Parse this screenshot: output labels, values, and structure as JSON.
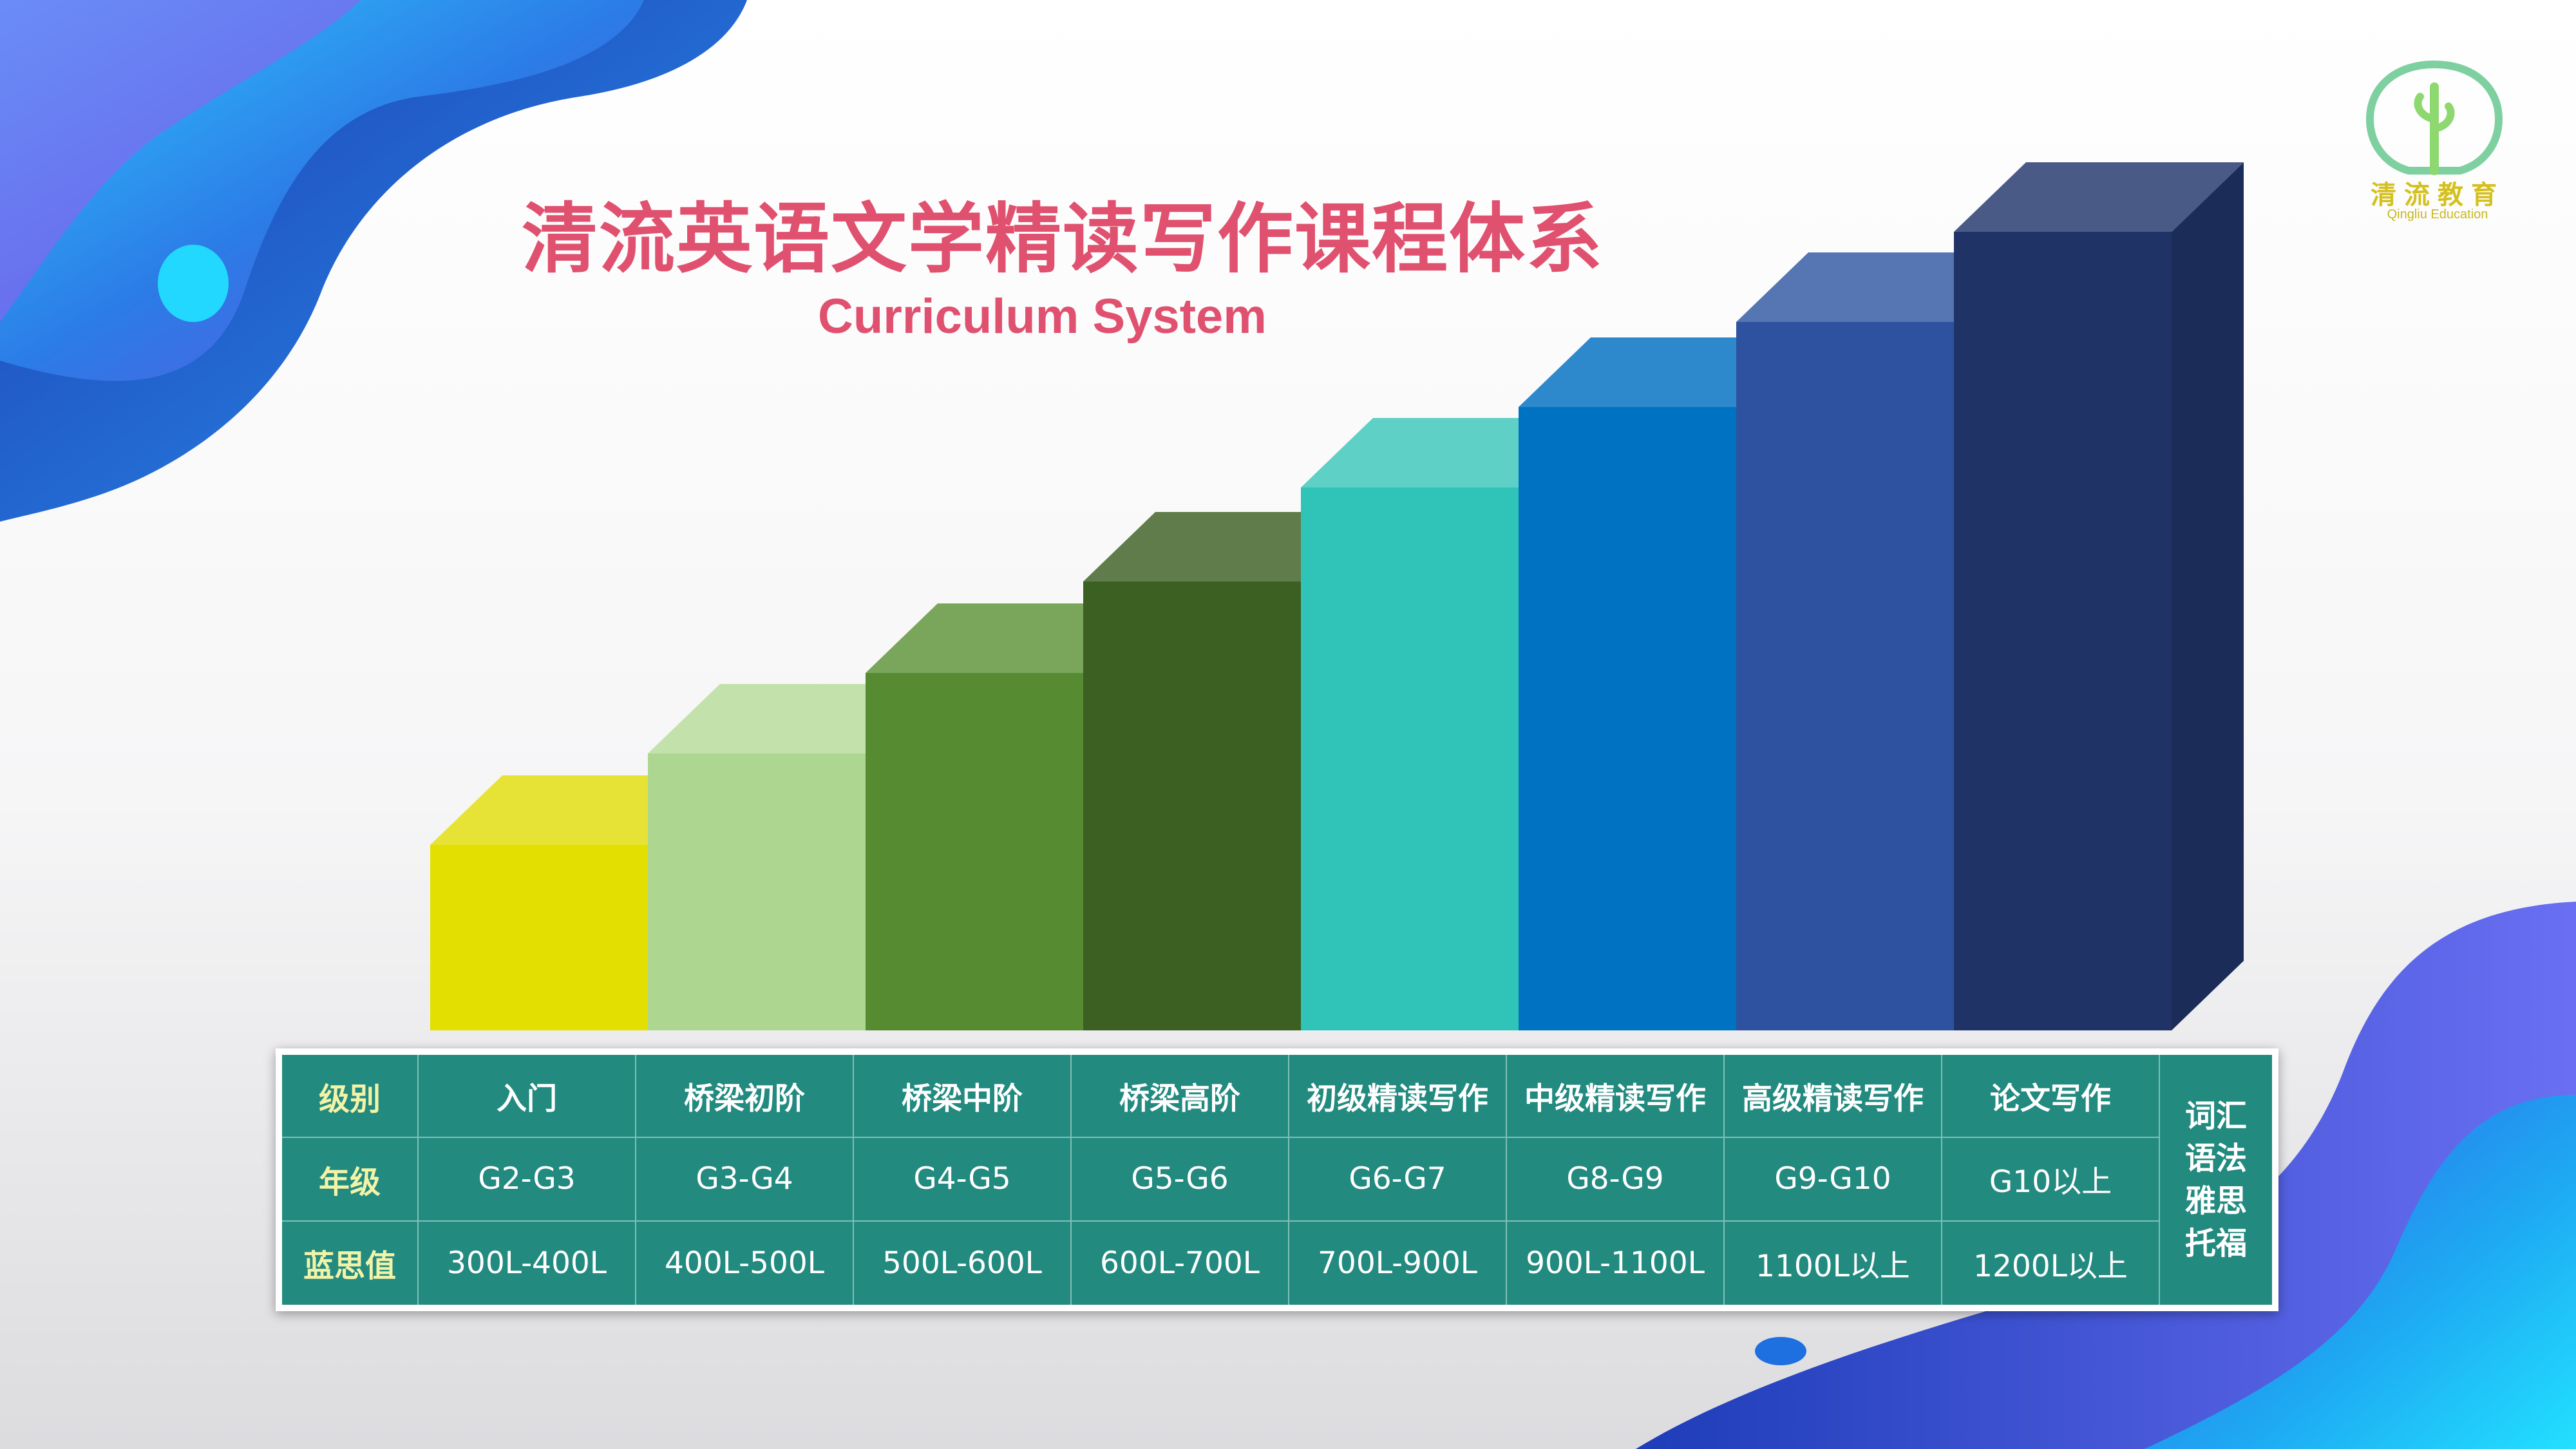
{
  "title": "清流英语文学精读写作课程体系",
  "subtitle": "Curriculum System",
  "logo": {
    "name_cn": "清流教育",
    "name_en": "Qingliu Education",
    "icon": "tree-sprout-icon"
  },
  "table": {
    "row_labels": [
      "级别",
      "年级",
      "蓝思值"
    ],
    "levels": [
      {
        "name": "入门",
        "grade": "G2-G3",
        "lexile": "300L-400L",
        "color": "#e3df00",
        "top_color": "#e7e336",
        "side_color": "#c8c400"
      },
      {
        "name": "桥梁初阶",
        "grade": "G3-G4",
        "lexile": "400L-500L",
        "color": "#add791",
        "top_color": "#c3e2ab",
        "side_color": "#94c278"
      },
      {
        "name": "桥梁中阶",
        "grade": "G4-G5",
        "lexile": "500L-600L",
        "color": "#578b31",
        "top_color": "#79a65a",
        "side_color": "#497a27"
      },
      {
        "name": "桥梁高阶",
        "grade": "G5-G6",
        "lexile": "600L-700L",
        "color": "#3c6022",
        "top_color": "#5f7c4a",
        "side_color": "#2f4f1a"
      },
      {
        "name": "初级精读写作",
        "grade": "G6-G7",
        "lexile": "700L-900L",
        "color": "#30c4b8",
        "top_color": "#5fd0c6",
        "side_color": "#22a99e"
      },
      {
        "name": "中级精读写作",
        "grade": "G8-G9",
        "lexile": "900L-1100L",
        "color": "#0072c2",
        "top_color": "#2e89cc",
        "side_color": "#0060a8"
      },
      {
        "name": "高级精读写作",
        "grade": "G9-G10",
        "lexile": "1100L以上",
        "color": "#2e52a0",
        "top_color": "#5575b3",
        "side_color": "#24448b"
      },
      {
        "name": "论文写作",
        "grade": "G10以上",
        "lexile": "1200L以上",
        "color": "#1f3366",
        "top_color": "#4a5a86",
        "side_color": "#1b2c58"
      }
    ],
    "side_items": [
      "词汇",
      "语法",
      "雅思",
      "托福"
    ]
  },
  "colors": {
    "title": "#e0516f",
    "table_bg": "#228a7f",
    "label_text": "#f3f3a8",
    "logo": "#d4c020"
  }
}
